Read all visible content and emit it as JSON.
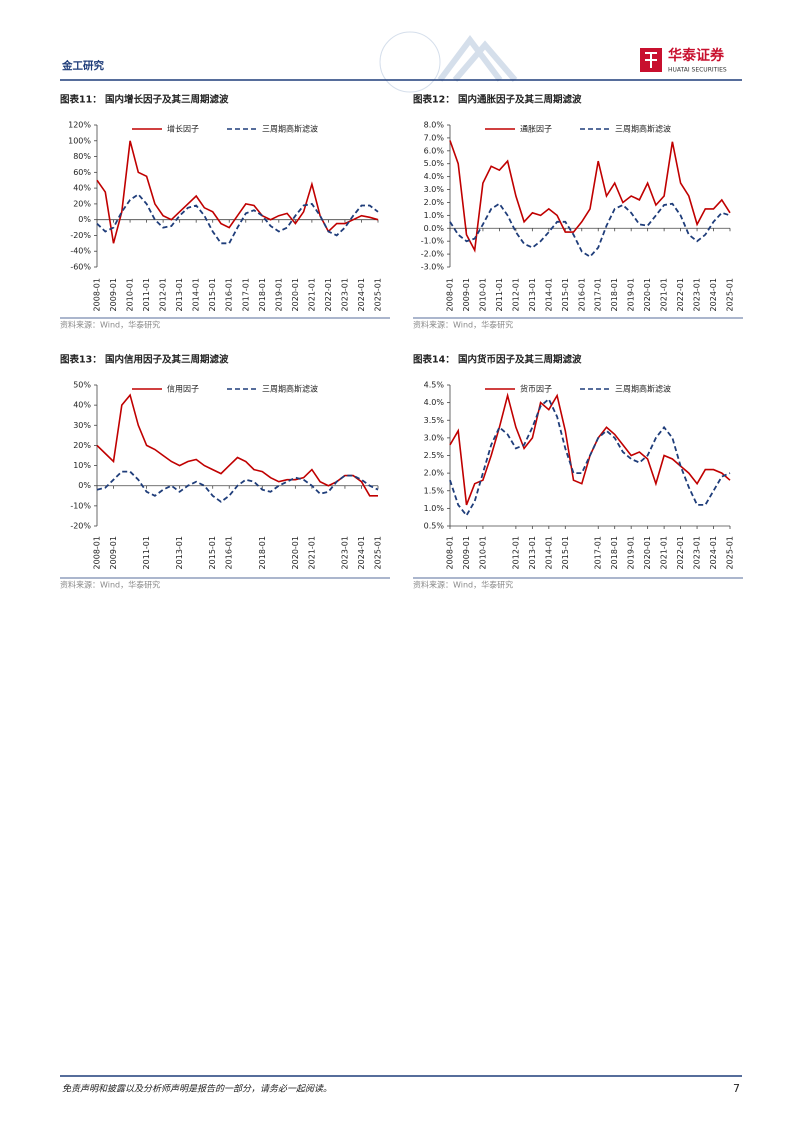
{
  "header": {
    "section": "金工研究",
    "logo_cn": "华泰证券",
    "logo_en": "HUATAI SECURITIES"
  },
  "chart_data": [
    {
      "type": "line",
      "title": "图表11：  国内增长因子及其三周期滤波",
      "source": "资料来源：Wind，华泰研究",
      "x": [
        "2008-01",
        "2008-07",
        "2009-01",
        "2009-07",
        "2010-01",
        "2010-07",
        "2011-01",
        "2011-07",
        "2012-01",
        "2012-07",
        "2013-01",
        "2013-07",
        "2014-01",
        "2014-07",
        "2015-01",
        "2015-07",
        "2016-01",
        "2016-07",
        "2017-01",
        "2017-07",
        "2018-01",
        "2018-07",
        "2019-01",
        "2019-07",
        "2020-01",
        "2020-07",
        "2021-01",
        "2021-07",
        "2022-01",
        "2022-07",
        "2023-01",
        "2023-07",
        "2024-01",
        "2024-07",
        "2025-01"
      ],
      "xticks": [
        "2008-01",
        "2009-01",
        "2010-01",
        "2011-01",
        "2012-01",
        "2013-01",
        "2014-01",
        "2015-01",
        "2016-01",
        "2017-01",
        "2018-01",
        "2019-01",
        "2020-01",
        "2021-01",
        "2022-01",
        "2023-01",
        "2024-01",
        "2025-01"
      ],
      "ylim": [
        -60,
        120
      ],
      "yticks": [
        {
          "value": -60,
          "label": "-60%"
        },
        {
          "value": -40,
          "label": "-40%"
        },
        {
          "value": -20,
          "label": "-20%"
        },
        {
          "value": 0,
          "label": "0%"
        },
        {
          "value": 20,
          "label": "20%"
        },
        {
          "value": 40,
          "label": "40%"
        },
        {
          "value": 60,
          "label": "60%"
        },
        {
          "value": 80,
          "label": "80%"
        },
        {
          "value": 100,
          "label": "100%"
        },
        {
          "value": 120,
          "label": "120%"
        }
      ],
      "series": [
        {
          "name": "增长因子",
          "color": "#c00000",
          "dashed": false,
          "values": [
            50,
            35,
            -30,
            10,
            100,
            60,
            55,
            20,
            5,
            0,
            10,
            20,
            30,
            15,
            10,
            -5,
            -10,
            5,
            20,
            18,
            5,
            0,
            5,
            8,
            -5,
            10,
            45,
            5,
            -15,
            -5,
            -5,
            0,
            5,
            3,
            0
          ]
        },
        {
          "name": "三周期高斯滤波",
          "color": "#1f3d7a",
          "dashed": true,
          "values": [
            -5,
            -15,
            -10,
            10,
            25,
            32,
            20,
            0,
            -10,
            -8,
            5,
            15,
            18,
            5,
            -15,
            -30,
            -30,
            -10,
            8,
            12,
            5,
            -8,
            -15,
            -10,
            5,
            18,
            20,
            5,
            -15,
            -20,
            -10,
            5,
            18,
            18,
            10
          ]
        }
      ]
    },
    {
      "type": "line",
      "title": "图表12：  国内通胀因子及其三周期滤波",
      "source": "资料来源：Wind，华泰研究",
      "x": [
        "2008-01",
        "2008-07",
        "2009-01",
        "2009-07",
        "2010-01",
        "2010-07",
        "2011-01",
        "2011-07",
        "2012-01",
        "2012-07",
        "2013-01",
        "2013-07",
        "2014-01",
        "2014-07",
        "2015-01",
        "2015-07",
        "2016-01",
        "2016-07",
        "2017-01",
        "2017-07",
        "2018-01",
        "2018-07",
        "2019-01",
        "2019-07",
        "2020-01",
        "2020-07",
        "2021-01",
        "2021-07",
        "2022-01",
        "2022-07",
        "2023-01",
        "2023-07",
        "2024-01",
        "2024-07",
        "2025-01"
      ],
      "xticks": [
        "2008-01",
        "2009-01",
        "2010-01",
        "2011-01",
        "2012-01",
        "2013-01",
        "2014-01",
        "2015-01",
        "2016-01",
        "2017-01",
        "2018-01",
        "2019-01",
        "2020-01",
        "2021-01",
        "2022-01",
        "2023-01",
        "2024-01",
        "2025-01"
      ],
      "ylim": [
        -3,
        8
      ],
      "yticks": [
        {
          "value": -3,
          "label": "-3.0%"
        },
        {
          "value": -2,
          "label": "-2.0%"
        },
        {
          "value": -1,
          "label": "-1.0%"
        },
        {
          "value": 0,
          "label": "0.0%"
        },
        {
          "value": 1,
          "label": "1.0%"
        },
        {
          "value": 2,
          "label": "2.0%"
        },
        {
          "value": 3,
          "label": "3.0%"
        },
        {
          "value": 4,
          "label": "4.0%"
        },
        {
          "value": 5,
          "label": "5.0%"
        },
        {
          "value": 6,
          "label": "6.0%"
        },
        {
          "value": 7,
          "label": "7.0%"
        },
        {
          "value": 8,
          "label": "8.0%"
        }
      ],
      "series": [
        {
          "name": "通胀因子",
          "color": "#c00000",
          "dashed": false,
          "values": [
            6.8,
            5.0,
            -0.5,
            -1.7,
            3.5,
            4.8,
            4.5,
            5.2,
            2.5,
            0.5,
            1.2,
            1.0,
            1.5,
            1.0,
            -0.3,
            -0.3,
            0.5,
            1.5,
            5.2,
            2.5,
            3.5,
            2.0,
            2.5,
            2.2,
            3.5,
            1.8,
            2.5,
            6.7,
            3.5,
            2.5,
            0.3,
            1.5,
            1.5,
            2.2,
            1.2
          ]
        },
        {
          "name": "三周期高斯滤波",
          "color": "#1f3d7a",
          "dashed": true,
          "values": [
            0.5,
            -0.5,
            -1.0,
            -0.8,
            0.3,
            1.5,
            1.9,
            1.0,
            -0.3,
            -1.2,
            -1.5,
            -1.0,
            -0.3,
            0.5,
            0.5,
            -0.5,
            -1.8,
            -2.2,
            -1.5,
            0.2,
            1.5,
            1.8,
            1.2,
            0.3,
            0.2,
            1.0,
            1.8,
            1.9,
            1.0,
            -0.5,
            -1.0,
            -0.5,
            0.5,
            1.2,
            1.0
          ]
        }
      ]
    },
    {
      "type": "line",
      "title": "图表13：  国内信用因子及其三周期滤波",
      "source": "资料来源：Wind，华泰研究",
      "x": [
        "2008-01",
        "2008-07",
        "2009-01",
        "2009-07",
        "2010-01",
        "2010-07",
        "2011-01",
        "2011-07",
        "2012-01",
        "2012-07",
        "2013-01",
        "2013-07",
        "2014-01",
        "2014-07",
        "2015-01",
        "2015-07",
        "2016-01",
        "2016-07",
        "2017-01",
        "2017-07",
        "2018-01",
        "2018-07",
        "2019-01",
        "2019-07",
        "2020-01",
        "2020-07",
        "2021-01",
        "2021-07",
        "2022-01",
        "2022-07",
        "2023-01",
        "2023-07",
        "2024-01",
        "2024-07",
        "2025-01"
      ],
      "xticks": [
        "2008-01",
        "2009-01",
        "2011-01",
        "2013-01",
        "2015-01",
        "2016-01",
        "2018-01",
        "2020-01",
        "2021-01",
        "2023-01",
        "2024-01",
        "2025-01"
      ],
      "ylim": [
        -20,
        50
      ],
      "yticks": [
        {
          "value": -20,
          "label": "-20%"
        },
        {
          "value": -10,
          "label": "-10%"
        },
        {
          "value": 0,
          "label": "0%"
        },
        {
          "value": 10,
          "label": "10%"
        },
        {
          "value": 20,
          "label": "20%"
        },
        {
          "value": 30,
          "label": "30%"
        },
        {
          "value": 40,
          "label": "40%"
        },
        {
          "value": 50,
          "label": "50%"
        }
      ],
      "series": [
        {
          "name": "信用因子",
          "color": "#c00000",
          "dashed": false,
          "values": [
            20,
            16,
            12,
            40,
            45,
            30,
            20,
            18,
            15,
            12,
            10,
            12,
            13,
            10,
            8,
            6,
            10,
            14,
            12,
            8,
            7,
            4,
            2,
            3,
            3,
            4,
            8,
            2,
            0,
            2,
            5,
            5,
            2,
            -5,
            -5
          ]
        },
        {
          "name": "三周期高斯滤波",
          "color": "#1f3d7a",
          "dashed": true,
          "values": [
            -2,
            -1,
            3,
            7,
            7,
            3,
            -3,
            -5,
            -2,
            0,
            -3,
            0,
            2,
            0,
            -5,
            -8,
            -5,
            0,
            3,
            2,
            -2,
            -3,
            0,
            2,
            4,
            3,
            0,
            -4,
            -3,
            2,
            5,
            5,
            3,
            0,
            -2
          ]
        }
      ]
    },
    {
      "type": "line",
      "title": "图表14：  国内货币因子及其三周期滤波",
      "source": "资料来源：Wind，华泰研究",
      "x": [
        "2008-01",
        "2008-07",
        "2009-01",
        "2009-07",
        "2010-01",
        "2010-07",
        "2011-01",
        "2011-07",
        "2012-01",
        "2012-07",
        "2013-01",
        "2013-07",
        "2014-01",
        "2014-07",
        "2015-01",
        "2015-07",
        "2016-01",
        "2016-07",
        "2017-01",
        "2017-07",
        "2018-01",
        "2018-07",
        "2019-01",
        "2019-07",
        "2020-01",
        "2020-07",
        "2021-01",
        "2021-07",
        "2022-01",
        "2022-07",
        "2023-01",
        "2023-07",
        "2024-01",
        "2024-07",
        "2025-01"
      ],
      "xticks": [
        "2008-01",
        "2009-01",
        "2010-01",
        "2012-01",
        "2013-01",
        "2014-01",
        "2015-01",
        "2017-01",
        "2018-01",
        "2019-01",
        "2020-01",
        "2021-01",
        "2022-01",
        "2023-01",
        "2024-01",
        "2025-01"
      ],
      "ylim": [
        0.5,
        4.5
      ],
      "yticks": [
        {
          "value": 0.5,
          "label": "0.5%"
        },
        {
          "value": 1,
          "label": "1.0%"
        },
        {
          "value": 1.5,
          "label": "1.5%"
        },
        {
          "value": 2,
          "label": "2.0%"
        },
        {
          "value": 2.5,
          "label": "2.5%"
        },
        {
          "value": 3,
          "label": "3.0%"
        },
        {
          "value": 3.5,
          "label": "3.5%"
        },
        {
          "value": 4,
          "label": "4.0%"
        },
        {
          "value": 4.5,
          "label": "4.5%"
        }
      ],
      "series": [
        {
          "name": "货币因子",
          "color": "#c00000",
          "dashed": false,
          "values": [
            2.8,
            3.2,
            1.1,
            1.7,
            1.8,
            2.5,
            3.3,
            4.2,
            3.3,
            2.7,
            3.0,
            4.0,
            3.8,
            4.2,
            3.2,
            1.8,
            1.7,
            2.5,
            3.0,
            3.3,
            3.1,
            2.8,
            2.5,
            2.6,
            2.4,
            1.7,
            2.5,
            2.4,
            2.2,
            2.0,
            1.7,
            2.1,
            2.1,
            2.0,
            1.8
          ]
        },
        {
          "name": "三周期高斯滤波",
          "color": "#1f3d7a",
          "dashed": true,
          "values": [
            1.8,
            1.1,
            0.8,
            1.2,
            2.0,
            2.8,
            3.3,
            3.1,
            2.7,
            2.8,
            3.3,
            3.9,
            4.1,
            3.6,
            2.7,
            2.0,
            2.0,
            2.5,
            3.0,
            3.2,
            3.0,
            2.6,
            2.4,
            2.3,
            2.5,
            3.0,
            3.3,
            3.0,
            2.2,
            1.6,
            1.1,
            1.1,
            1.5,
            1.9,
            2.0
          ]
        }
      ]
    }
  ],
  "footer": {
    "disclaimer": "免责声明和披露以及分析师声明是报告的一部分，请务必一起阅读。",
    "page": "7"
  }
}
